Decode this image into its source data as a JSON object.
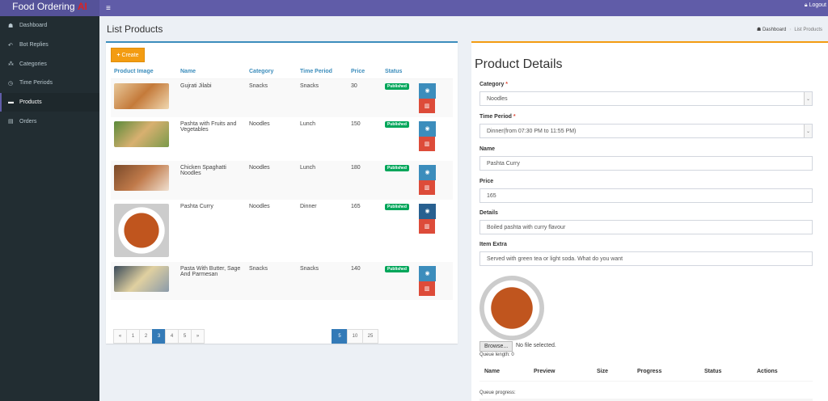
{
  "app": {
    "title": "Food Ordering",
    "title_accent": "AI",
    "logout_label": "Logout"
  },
  "sidebar": {
    "items": [
      {
        "label": "Dashboard",
        "icon": "dashboard-icon",
        "glyph": "☗",
        "active": false
      },
      {
        "label": "Bot Replies",
        "icon": "reply-icon",
        "glyph": "↶",
        "active": false
      },
      {
        "label": "Categories",
        "icon": "cubes-icon",
        "glyph": "⁂",
        "active": false
      },
      {
        "label": "Time Periods",
        "icon": "clock-icon",
        "glyph": "◷",
        "active": false
      },
      {
        "label": "Products",
        "icon": "coffee-icon",
        "glyph": "▬",
        "active": true
      },
      {
        "label": "Orders",
        "icon": "book-icon",
        "glyph": "▤",
        "active": false
      }
    ]
  },
  "page": {
    "title": "List Products"
  },
  "breadcrumb": {
    "home": "Dashboard",
    "current": "List Products"
  },
  "list": {
    "create_label": "Create",
    "columns": [
      "Product Image",
      "Name",
      "Category",
      "Time Period",
      "Price",
      "Status"
    ],
    "rows": [
      {
        "name": "Gujrati Jilabi",
        "category": "Snacks",
        "time_period": "Snacks",
        "price": "30",
        "status": "Published",
        "img": "linear-gradient(135deg,#e8c89a,#c47a3a 50%,#f0d8b0)"
      },
      {
        "name": "Pashta with Fruits and Vegetables",
        "category": "Noodles",
        "time_period": "Lunch",
        "price": "150",
        "status": "Published",
        "img": "linear-gradient(135deg,#5a8a3a,#d8b070 50%,#7a9a4a)"
      },
      {
        "name": "Chicken Spaghatti Noodles",
        "category": "Noodles",
        "time_period": "Lunch",
        "price": "180",
        "status": "Published",
        "img": "linear-gradient(135deg,#7a4a2a,#c07a4a 50%,#f0e0d0)"
      },
      {
        "name": "Pashta Curry",
        "category": "Noodles",
        "time_period": "Dinner",
        "price": "165",
        "status": "Published",
        "img": "radial-gradient(circle,#c0551e 0 45%,#fff 46% 60%,#ccc 61%)"
      },
      {
        "name": "Pasta With Butter, Sage And Parmesan",
        "category": "Snacks",
        "time_period": "Snacks",
        "price": "140",
        "status": "Published",
        "img": "linear-gradient(135deg,#3a4a5a,#e0d0a0 50%,#8a9aaa)"
      }
    ],
    "pagination": [
      "«",
      "1",
      "2",
      "3",
      "4",
      "5",
      "»"
    ],
    "active_page": "3",
    "page_sizes": [
      "5",
      "10",
      "25"
    ],
    "active_size": "5"
  },
  "details": {
    "title": "Product Details",
    "category_label": "Category",
    "category_value": "Noodles",
    "time_period_label": "Time Period",
    "time_period_value": "Dinner(from 07:30 PM to 11:55 PM)",
    "name_label": "Name",
    "name_value": "Pashta Curry",
    "price_label": "Price",
    "price_value": "165",
    "details_label": "Details",
    "details_value": "Boiled pashta with curry flavour",
    "extra_label": "Item Extra",
    "extra_value": "Served with green tea or light soda. What do you want",
    "browse_label": "Browse...",
    "no_file": "No file selected.",
    "queue_length": "Queue length: 0",
    "queue_columns": [
      "Name",
      "Preview",
      "Size",
      "Progress",
      "Status",
      "Actions"
    ],
    "queue_progress": "Queue progress:"
  }
}
